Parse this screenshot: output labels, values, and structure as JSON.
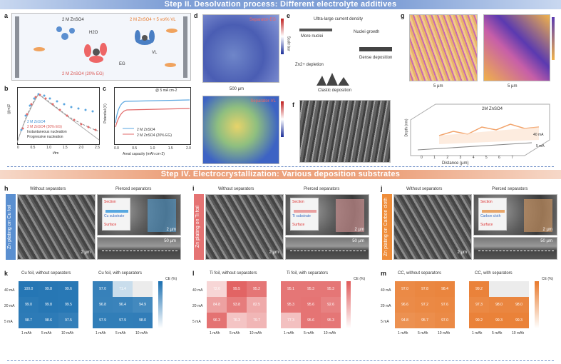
{
  "banners": {
    "step2": "Step II. Desolvation process: Different electrolyte additives",
    "step4": "Step IV. Electrocrystallization: Various deposition substrates"
  },
  "panels": {
    "a": {
      "letter": "a",
      "labels": [
        "2 M ZnSO4",
        "H2O",
        "2 M ZnSO4 + 5 vol% VL",
        "EG",
        "VL",
        "2 M ZnSO4 (20% EG)"
      ]
    },
    "b": {
      "letter": "b",
      "ylabel": "(j/jm)2",
      "xlabel": "t/tm",
      "legend": [
        "2 M ZnSO4",
        "2 M ZnSO4 (20% EG)",
        "Instantaneous nucleation",
        "Progressive nucleation"
      ],
      "xticks": [
        "0",
        "0.5",
        "1.0",
        "1.5",
        "2.0",
        "2.5"
      ],
      "yticks": [
        "0.0",
        "0.5",
        "1.0"
      ]
    },
    "c": {
      "letter": "c",
      "ylabel": "Potential (V)",
      "xlabel": "Areal capacity (mAh cm-2)",
      "note": "@ 5 mA cm-2",
      "legend": [
        "2 M ZnSO4",
        "2 M ZnSO4 (20% EG)"
      ],
      "xticks": [
        "0.0",
        "0.5",
        "1.0",
        "1.5",
        "2.0"
      ]
    },
    "d": {
      "letter": "d",
      "top": "Separator-EG",
      "bottom": "Separator-VL",
      "scale": "500 µm",
      "bar": "Scale bar"
    },
    "e": {
      "letter": "e",
      "t1": "Ultra-large current density",
      "t2": "More nuclei",
      "t3": "Nuclei growth",
      "t4": "Dense deposition",
      "t5": "Zn2+ depletion",
      "t6": "Clastic deposition"
    },
    "f": {
      "letter": "f"
    },
    "g": {
      "letter": "g",
      "s1": "5 µm",
      "s2": "5 µm",
      "series": "2M ZnSO4",
      "ylabel": "Depth (nm)",
      "xlabel": "Distance (µm)",
      "zlabel": "40 mA",
      "z2": "5 mA",
      "xticks": [
        "0",
        "1",
        "2",
        "3",
        "4",
        "5",
        "6",
        "7"
      ]
    },
    "h": {
      "letter": "h",
      "side": "Zn plating on Cu foil",
      "t1": "Without separators",
      "t2": "Pierced separators",
      "sec": "Section",
      "sur": "Surface",
      "sub": "Cu substrate",
      "s1": "2 µm",
      "s2": "2 µm",
      "s3": "50 µm"
    },
    "i": {
      "letter": "i",
      "side": "Zn plating on Ti foil",
      "t1": "Without separators",
      "t2": "Pierced separators",
      "sec": "Section",
      "sur": "Surface",
      "sub": "Ti substrate",
      "s1": "2 µm",
      "s2": "2 µm",
      "s3": "50 µm"
    },
    "j": {
      "letter": "j",
      "side": "Zn plating on Carbon cloth",
      "t1": "Without separators",
      "t2": "Pierced separators",
      "sec": "Section",
      "sur": "Surface",
      "sub": "Carbon cloth",
      "s1": "2 µm",
      "s2": "2 µm",
      "s3": "50 µm"
    },
    "k": {
      "letter": "k",
      "t1": "Cu foil, without separators",
      "t2": "Cu foil, with separators"
    },
    "l": {
      "letter": "l",
      "t1": "Ti foil, without separators",
      "t2": "Ti foil, with separators"
    },
    "m": {
      "letter": "m",
      "t1": "CC, without separators",
      "t2": "CC, with separators"
    }
  },
  "heat_axes": {
    "rows": [
      "40 mA",
      "20 mA",
      "5 mA"
    ],
    "cols": [
      "1 mAh",
      "5 mAh",
      "10 mAh"
    ],
    "cbar": "CE (%)"
  },
  "chart_data": [
    {
      "type": "heatmap",
      "title": "Cu foil, without separators",
      "rows": [
        "40 mA",
        "20 mA",
        "5 mA"
      ],
      "cols": [
        "1 mAh",
        "5 mAh",
        "10 mAh"
      ],
      "values": [
        [
          100,
          99.8,
          99.6
        ],
        [
          99.0,
          99.8,
          99.5
        ],
        [
          98.7,
          98.6,
          97.5
        ]
      ],
      "colormap": "blue"
    },
    {
      "type": "heatmap",
      "title": "Cu foil, with separators",
      "rows": [
        "40 mA",
        "20 mA",
        "5 mA"
      ],
      "cols": [
        "1 mAh",
        "5 mAh",
        "10 mAh"
      ],
      "values": [
        [
          97.0,
          71.4,
          null
        ],
        [
          96.8,
          96.4,
          94.9
        ],
        [
          97.9,
          97.9,
          98.0
        ]
      ],
      "colormap": "blue"
    },
    {
      "type": "heatmap",
      "title": "Ti foil, without separators",
      "rows": [
        "40 mA",
        "20 mA",
        "5 mA"
      ],
      "cols": [
        "1 mAh",
        "5 mAh",
        "10 mAh"
      ],
      "values": [
        [
          72.0,
          99.5,
          95.2
        ],
        [
          84.8,
          93.8,
          82.5
        ],
        [
          96.3,
          76.3,
          79.7
        ]
      ],
      "colormap": "red"
    },
    {
      "type": "heatmap",
      "title": "Ti foil, with separators",
      "rows": [
        "40 mA",
        "20 mA",
        "5 mA"
      ],
      "cols": [
        "1 mAh",
        "5 mAh",
        "10 mAh"
      ],
      "values": [
        [
          95.1,
          95.3,
          95.3
        ],
        [
          95.3,
          95.6,
          92.6
        ],
        [
          77.3,
          95.6,
          95.3
        ]
      ],
      "colormap": "red"
    },
    {
      "type": "heatmap",
      "title": "CC, without separators",
      "rows": [
        "40 mA",
        "20 mA",
        "5 mA"
      ],
      "cols": [
        "1 mAh",
        "5 mAh",
        "10 mAh"
      ],
      "values": [
        [
          97.0,
          97.8,
          98.4
        ],
        [
          96.6,
          97.2,
          97.6
        ],
        [
          94.8,
          95.7,
          97.0
        ]
      ],
      "colormap": "orange"
    },
    {
      "type": "heatmap",
      "title": "CC, with separators",
      "rows": [
        "40 mA",
        "20 mA",
        "5 mA"
      ],
      "cols": [
        "1 mAh",
        "5 mAh",
        "10 mAh"
      ],
      "values": [
        [
          99.2,
          null,
          null
        ],
        [
          97.3,
          98.0,
          98.0
        ],
        [
          99.2,
          99.3,
          99.3
        ]
      ],
      "colormap": "orange"
    }
  ],
  "colors": {
    "blue_hi": "#1a6fb0",
    "red_hi": "#e05a5a",
    "orange_hi": "#e8792b"
  }
}
